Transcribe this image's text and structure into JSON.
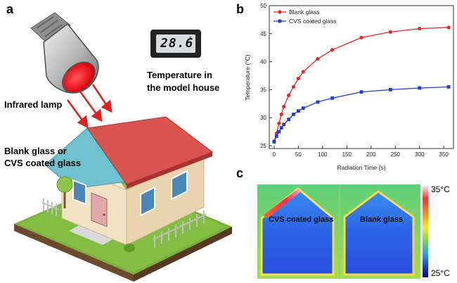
{
  "panels": {
    "a": "a",
    "b": "b",
    "c": "c"
  },
  "panel_a": {
    "lamp_label": "Infrared lamp",
    "thermometer_reading": "28.6",
    "thermometer_unit": "°",
    "thermometer_label_line1": "Temperature in",
    "thermometer_label_line2": "the model house",
    "glass_label_line1": "Blank glass or",
    "glass_label_line2": "CVS coated glass"
  },
  "chart_data": {
    "type": "line",
    "xlabel": "Radiation Time (s)",
    "ylabel": "Temperature (°C)",
    "xlim": [
      -10,
      370
    ],
    "ylim": [
      24.5,
      50
    ],
    "xticks": [
      0,
      50,
      100,
      150,
      200,
      250,
      300,
      350
    ],
    "yticks": [
      25,
      30,
      35,
      40,
      45,
      50
    ],
    "legend_position": "top-left",
    "grid": false,
    "x": [
      0,
      5,
      10,
      15,
      20,
      30,
      40,
      50,
      60,
      90,
      120,
      180,
      240,
      300,
      360
    ],
    "series": [
      {
        "name": "Blank glass",
        "color": "#e8262a",
        "marker": "circle",
        "values": [
          25.8,
          27.2,
          29.0,
          30.6,
          32.0,
          34.0,
          35.5,
          37.0,
          38.2,
          40.5,
          42.1,
          44.3,
          45.3,
          45.9,
          46.1
        ]
      },
      {
        "name": "CVS coated glass",
        "color": "#1f3fd6",
        "marker": "square",
        "values": [
          25.7,
          26.7,
          27.5,
          28.2,
          28.8,
          29.7,
          30.6,
          31.2,
          31.7,
          32.8,
          33.5,
          34.6,
          35.0,
          35.3,
          35.5
        ]
      }
    ]
  },
  "panel_c": {
    "left_label": "CVS coated glass",
    "right_label": "Blank glass",
    "scale_max": "35°C",
    "scale_min": "25°C"
  },
  "colors": {
    "roof": "#d9534f",
    "wall": "#f2e2c4",
    "grass": "#79b33b",
    "lamp_red": "#e6101a",
    "arrow_red": "#e0201c"
  }
}
